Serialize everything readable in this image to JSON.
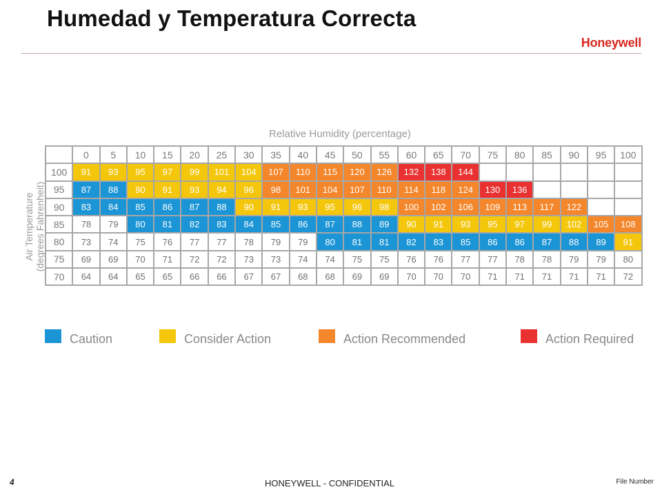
{
  "slide": {
    "title": "Humedad y Temperatura Correcta",
    "logo": "Honeywell",
    "page_number": "4",
    "footer": "HONEYWELL - CONFIDENTIAL",
    "file_number": "File Number"
  },
  "chart_data": {
    "type": "heatmap",
    "xlabel": "Relative Humidity (percentage)",
    "ylabel": "Air Temperature (degrees Fahrenheit)",
    "x": [
      0,
      5,
      10,
      15,
      20,
      25,
      30,
      35,
      40,
      45,
      50,
      55,
      60,
      65,
      70,
      75,
      80,
      85,
      90,
      95,
      100
    ],
    "y": [
      100,
      95,
      90,
      85,
      80,
      75,
      70
    ],
    "values": [
      [
        91,
        93,
        95,
        97,
        99,
        101,
        104,
        107,
        110,
        115,
        120,
        126,
        132,
        138,
        144,
        null,
        null,
        null,
        null,
        null,
        null
      ],
      [
        87,
        88,
        90,
        91,
        93,
        94,
        96,
        98,
        101,
        104,
        107,
        110,
        114,
        118,
        124,
        130,
        136,
        null,
        null,
        null,
        null
      ],
      [
        83,
        84,
        85,
        86,
        87,
        88,
        90,
        91,
        93,
        95,
        96,
        98,
        100,
        102,
        106,
        109,
        113,
        117,
        122,
        null,
        null
      ],
      [
        78,
        79,
        80,
        81,
        82,
        83,
        84,
        85,
        86,
        87,
        88,
        89,
        90,
        91,
        93,
        95,
        97,
        99,
        102,
        105,
        108
      ],
      [
        73,
        74,
        75,
        76,
        77,
        77,
        78,
        79,
        79,
        80,
        81,
        81,
        82,
        83,
        85,
        86,
        86,
        87,
        88,
        89,
        91
      ],
      [
        69,
        69,
        70,
        71,
        72,
        72,
        73,
        73,
        74,
        74,
        75,
        75,
        76,
        76,
        77,
        77,
        78,
        78,
        79,
        79,
        80
      ],
      [
        64,
        64,
        65,
        65,
        66,
        66,
        67,
        67,
        68,
        68,
        69,
        69,
        70,
        70,
        70,
        71,
        71,
        71,
        71,
        71,
        72
      ]
    ],
    "categories_map": [
      [
        "Y",
        "Y",
        "Y",
        "Y",
        "Y",
        "Y",
        "Y",
        "O",
        "O",
        "O",
        "O",
        "O",
        "R",
        "R",
        "R",
        "",
        "",
        "",
        "",
        "",
        ""
      ],
      [
        "B",
        "B",
        "Y",
        "Y",
        "Y",
        "Y",
        "Y",
        "O",
        "O",
        "O",
        "O",
        "O",
        "O",
        "O",
        "O",
        "R",
        "R",
        "",
        "",
        "",
        ""
      ],
      [
        "B",
        "B",
        "B",
        "B",
        "B",
        "B",
        "Y",
        "Y",
        "Y",
        "Y",
        "Y",
        "Y",
        "O",
        "O",
        "O",
        "O",
        "O",
        "O",
        "O",
        "",
        ""
      ],
      [
        "",
        "",
        "B",
        "B",
        "B",
        "B",
        "B",
        "B",
        "B",
        "B",
        "B",
        "B",
        "Y",
        "Y",
        "Y",
        "Y",
        "Y",
        "Y",
        "Y",
        "O",
        "O"
      ],
      [
        "",
        "",
        "",
        "",
        "",
        "",
        "",
        "",
        "",
        "B",
        "B",
        "B",
        "B",
        "B",
        "B",
        "B",
        "B",
        "B",
        "B",
        "B",
        "Y"
      ],
      [
        "",
        "",
        "",
        "",
        "",
        "",
        "",
        "",
        "",
        "",
        "",
        "",
        "",
        "",
        "",
        "",
        "",
        "",
        "",
        "",
        ""
      ],
      [
        "",
        "",
        "",
        "",
        "",
        "",
        "",
        "",
        "",
        "",
        "",
        "",
        "",
        "",
        "",
        "",
        "",
        "",
        "",
        "",
        ""
      ]
    ],
    "legend": [
      {
        "code": "B",
        "label": "Caution",
        "color": "#1b95d5"
      },
      {
        "code": "Y",
        "label": "Consider Action",
        "color": "#f4c70d"
      },
      {
        "code": "O",
        "label": "Action Recommended",
        "color": "#f4862b"
      },
      {
        "code": "R",
        "label": "Action Required",
        "color": "#ea3131"
      }
    ],
    "legend_position": "bottom"
  }
}
